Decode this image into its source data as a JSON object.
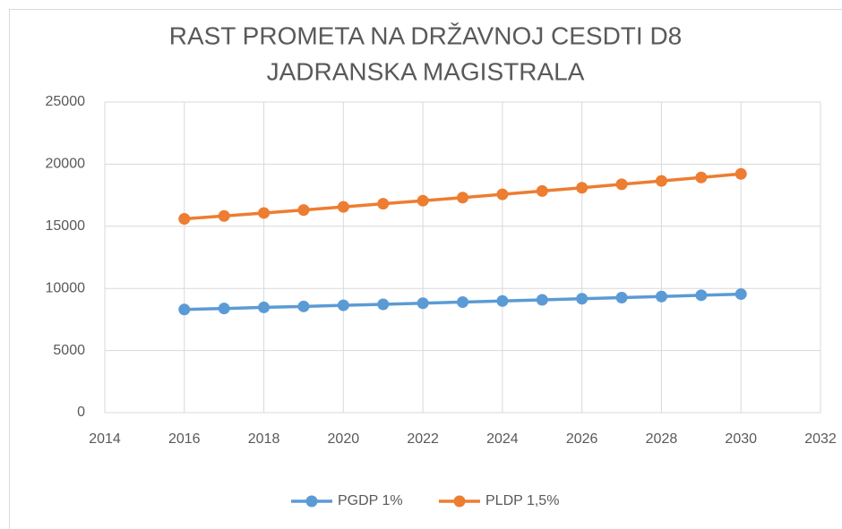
{
  "chart_data": {
    "type": "line",
    "title": [
      "RAST PROMETA NA DRŽAVNOJ CESDTI D8",
      "JADRANSKA MAGISTRALA"
    ],
    "x": [
      2016,
      2017,
      2018,
      2019,
      2020,
      2021,
      2022,
      2023,
      2024,
      2025,
      2026,
      2027,
      2028,
      2029,
      2030
    ],
    "series": [
      {
        "name": "PGDP 1%",
        "color": "#5b9bd5",
        "values": [
          8300,
          8380,
          8470,
          8550,
          8640,
          8720,
          8810,
          8900,
          8990,
          9080,
          9170,
          9260,
          9350,
          9450,
          9540
        ]
      },
      {
        "name": "PLDP 1,5%",
        "color": "#ed7d31",
        "values": [
          15600,
          15830,
          16070,
          16310,
          16560,
          16810,
          17060,
          17310,
          17570,
          17840,
          18100,
          18380,
          18650,
          18930,
          19220
        ]
      }
    ],
    "xlim": [
      2014,
      2032
    ],
    "xticks": [
      2014,
      2016,
      2018,
      2020,
      2022,
      2024,
      2026,
      2028,
      2030,
      2032
    ],
    "ylim": [
      0,
      25000
    ],
    "yticks": [
      0,
      5000,
      10000,
      15000,
      20000,
      25000
    ],
    "grid": true,
    "legend": "bottom"
  }
}
